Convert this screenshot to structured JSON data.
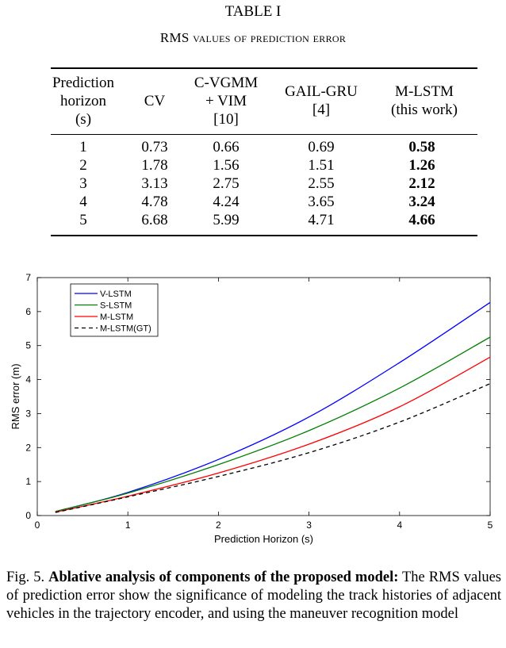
{
  "table": {
    "title": "TABLE I",
    "caption": "RMS values of prediction error",
    "headers": [
      "Prediction\nhorizon\n(s)",
      "CV",
      "C-VGMM\n+ VIM\n[10]",
      "GAIL-GRU\n[4]",
      "M-LSTM\n(this work)"
    ],
    "rows": [
      [
        "1",
        "0.73",
        "0.66",
        "0.69",
        "0.58"
      ],
      [
        "2",
        "1.78",
        "1.56",
        "1.51",
        "1.26"
      ],
      [
        "3",
        "3.13",
        "2.75",
        "2.55",
        "2.12"
      ],
      [
        "4",
        "4.78",
        "4.24",
        "3.65",
        "3.24"
      ],
      [
        "5",
        "6.68",
        "5.99",
        "4.71",
        "4.66"
      ]
    ]
  },
  "chart_data": {
    "type": "line",
    "title": "",
    "xlabel": "Prediction Horizon (s)",
    "ylabel": "RMS error (m)",
    "xlim": [
      0,
      5
    ],
    "ylim": [
      0,
      7
    ],
    "xticks": [
      0,
      1,
      2,
      3,
      4,
      5
    ],
    "yticks": [
      0,
      1,
      2,
      3,
      4,
      5,
      6,
      7
    ],
    "grid": false,
    "legend_position": "top-left",
    "x": [
      0.2,
      1,
      2,
      3,
      4,
      5
    ],
    "series": [
      {
        "name": "V-LSTM",
        "color": "#0000ff",
        "style": "solid",
        "values": [
          0.12,
          0.68,
          1.65,
          2.9,
          4.5,
          6.27
        ]
      },
      {
        "name": "S-LSTM",
        "color": "#008000",
        "style": "solid",
        "values": [
          0.12,
          0.66,
          1.5,
          2.5,
          3.75,
          5.25
        ]
      },
      {
        "name": "M-LSTM",
        "color": "#ff0000",
        "style": "solid",
        "values": [
          0.1,
          0.57,
          1.25,
          2.1,
          3.2,
          4.66
        ]
      },
      {
        "name": "M-LSTM(GT)",
        "color": "#000000",
        "style": "dashed",
        "values": [
          0.09,
          0.55,
          1.15,
          1.85,
          2.75,
          3.88
        ]
      }
    ]
  },
  "figure": {
    "label": "Fig. 5.",
    "bold_text": "Ablative analysis of components of the proposed model:",
    "text": "The RMS values of prediction error show the significance of modeling the track histories of adjacent vehicles in the trajectory encoder, and using the maneuver recognition model"
  }
}
